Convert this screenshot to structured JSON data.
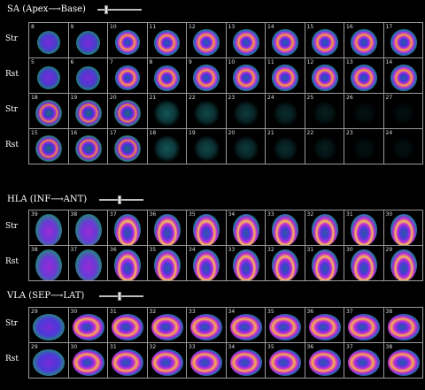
{
  "sections": [
    {
      "id": "sa",
      "title": "SA (Apex⟶Base)",
      "slider_fraction": 0.17,
      "row_labels": [
        "Str",
        "Rst",
        "Str",
        "Rst"
      ],
      "rows": [
        [
          "8",
          "9",
          "10",
          "11",
          "12",
          "13",
          "14",
          "15",
          "16",
          "17"
        ],
        [
          "5",
          "6",
          "7",
          "8",
          "9",
          "10",
          "11",
          "12",
          "13",
          "14"
        ],
        [
          "18",
          "19",
          "20",
          "21",
          "22",
          "23",
          "24",
          "25",
          "26",
          "27"
        ],
        [
          "15",
          "16",
          "17",
          "18",
          "19",
          "20",
          "21",
          "22",
          "23",
          "24"
        ]
      ]
    },
    {
      "id": "hla",
      "title": "HLA (INF⟶ANT)",
      "slider_fraction": 0.45,
      "row_labels": [
        "Str",
        "Rst"
      ],
      "rows": [
        [
          "39",
          "38",
          "37",
          "36",
          "35",
          "34",
          "33",
          "32",
          "31",
          "30"
        ],
        [
          "38",
          "37",
          "36",
          "35",
          "34",
          "33",
          "32",
          "31",
          "30",
          "29"
        ]
      ]
    },
    {
      "id": "vla",
      "title": "VLA (SEP⟶LAT)",
      "slider_fraction": 0.45,
      "row_labels": [
        "Str",
        "Rst"
      ],
      "rows": [
        [
          "29",
          "30",
          "31",
          "32",
          "33",
          "34",
          "35",
          "36",
          "37",
          "38"
        ],
        [
          "29",
          "30",
          "31",
          "32",
          "33",
          "34",
          "35",
          "36",
          "37",
          "38"
        ]
      ]
    }
  ]
}
